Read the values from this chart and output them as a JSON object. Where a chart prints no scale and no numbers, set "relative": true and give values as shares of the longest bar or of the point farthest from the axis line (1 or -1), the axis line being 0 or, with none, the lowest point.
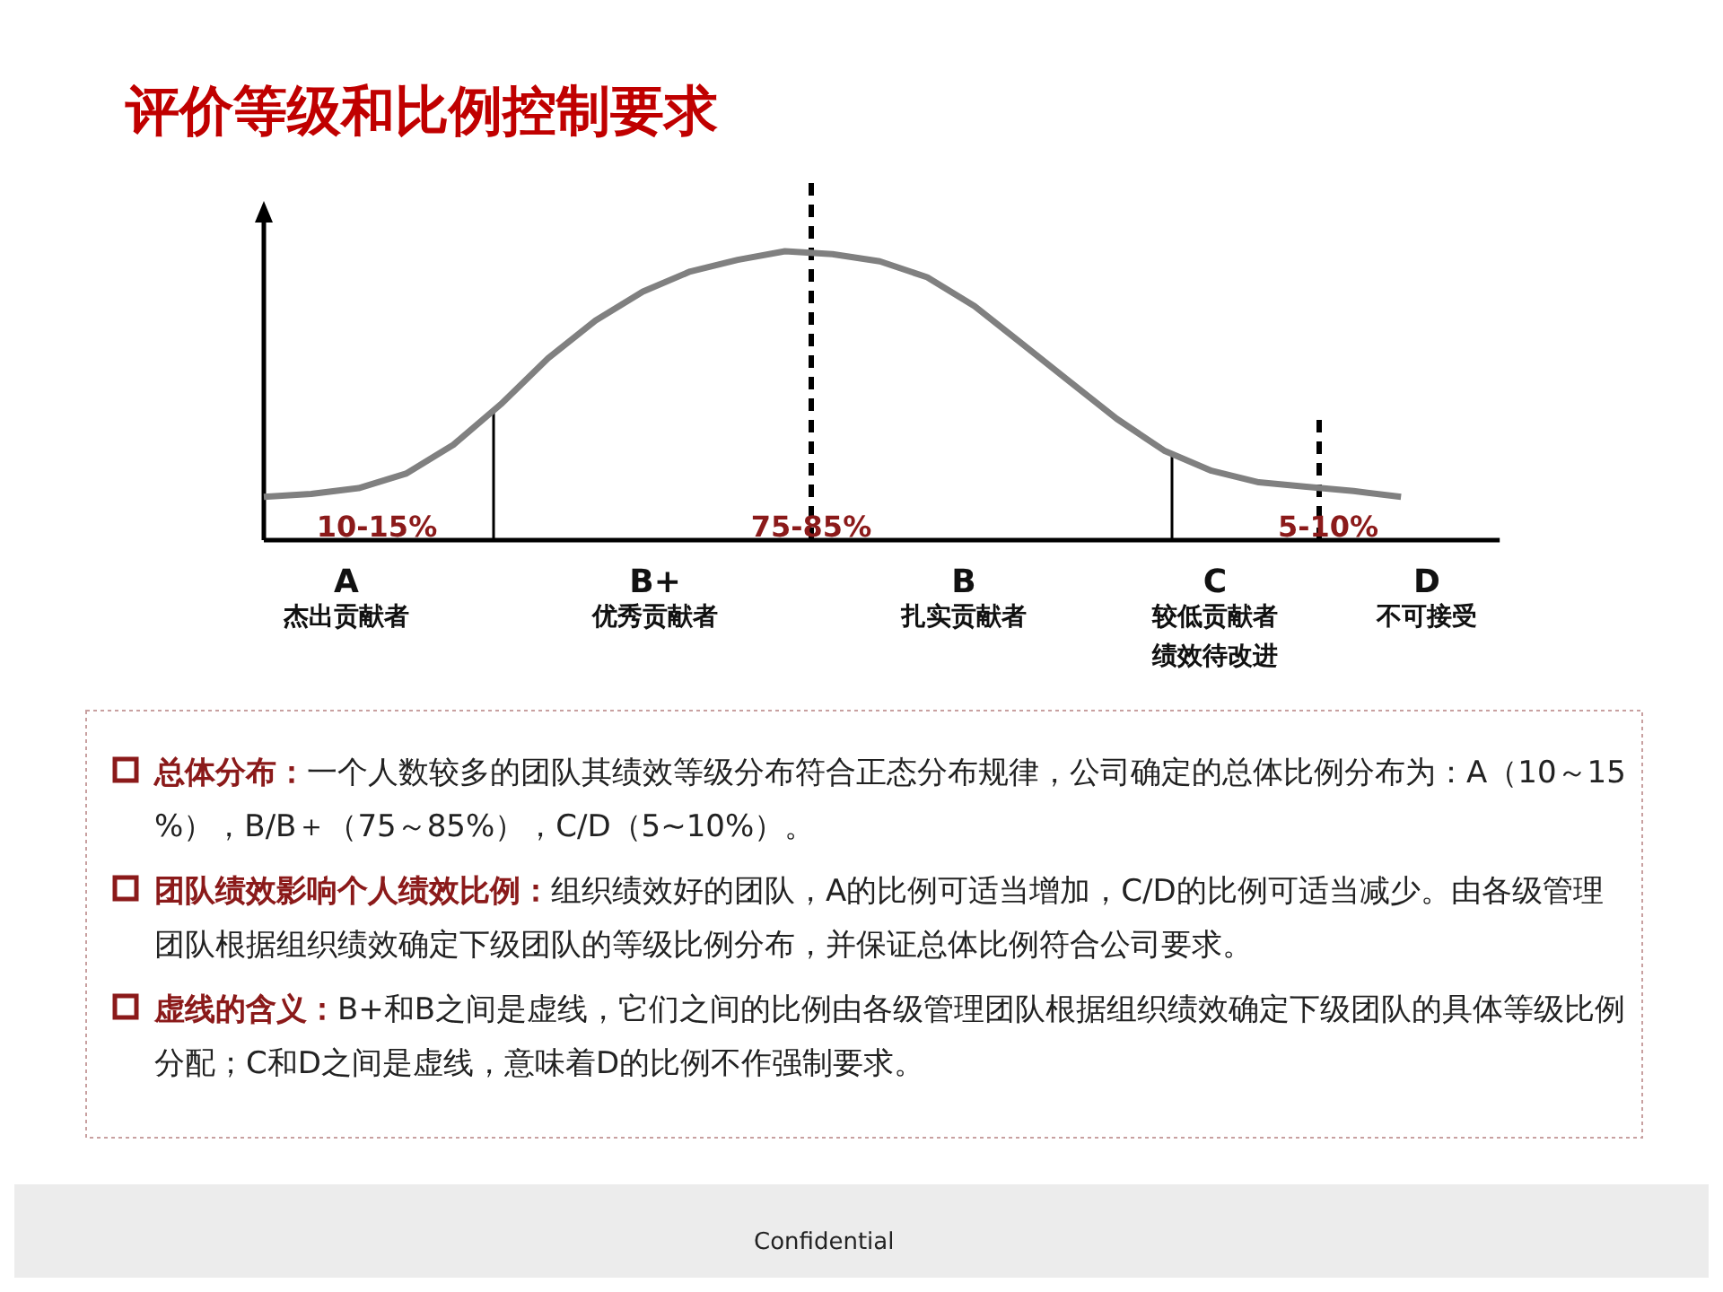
{
  "chart_data": {
    "type": "line",
    "title": "评价等级和比例控制要求",
    "relative": true,
    "line_style": "solid",
    "categories": [
      null,
      null,
      null,
      null,
      null,
      null,
      null,
      null,
      null,
      null,
      null,
      null,
      null,
      null,
      null,
      null,
      null,
      null,
      null,
      null,
      null,
      null,
      null,
      null,
      null
    ],
    "series": [
      {
        "color": "#808080",
        "values": [
          0.15,
          0.16,
          0.18,
          0.23,
          0.33,
          0.47,
          0.63,
          0.76,
          0.86,
          0.93,
          0.97,
          1,
          0.99,
          0.965,
          0.91,
          0.81,
          0.68,
          0.55,
          0.42,
          0.31,
          0.24,
          0.2,
          0.185,
          0.17,
          0.15
        ]
      }
    ],
    "annotations": [
      "10-15%",
      "75-85%",
      "5-10%",
      "A",
      "B+",
      "B",
      "C",
      "D",
      "杰出贡献者",
      "优秀贡献者",
      "扎实贡献者",
      "较低贡献者绩效待改进",
      "不可接受",
      "总体分布：一个人数较多的团队其绩效等级分布符合正态分布规律，公司确定的总体比例分布为：A（10～15%），B/B＋（75～85%），C/D（5~10%）。",
      "团队绩效影响个人绩效比例：组织绩效好的团队，A的比例可适当增加，C/D的比例可适当减少。由各级管理团队根据组织绩效确定下级团队的等级比例分布，并保证总体比例符合公司要求。",
      "虚线的含义：B+和B之间是虚线，它们之间的比例由各级管理团队根据组织绩效确定下级团队的具体等级比例分配；C和D之间是虚线，意味着D的比例不作强制要求。",
      "Confidential"
    ]
  }
}
